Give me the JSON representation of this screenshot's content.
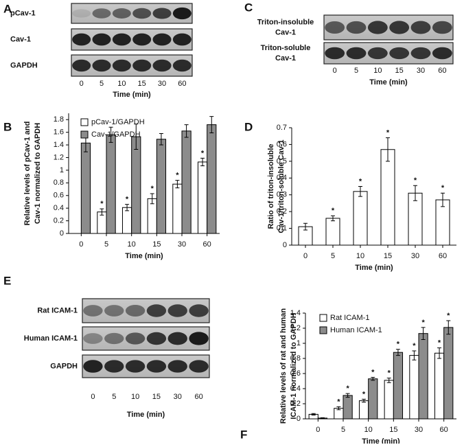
{
  "blots": [
    {
      "label": "A",
      "rows": [
        [
          "pCav-1"
        ],
        [
          "Cav-1"
        ],
        [
          "GAPDH"
        ]
      ],
      "lanes": [
        "0",
        "5",
        "10",
        "15",
        "30",
        "60"
      ],
      "xlabel": "Time (min)"
    },
    {
      "label": "C",
      "rows": [
        [
          "Triton-insoluble",
          "Cav-1"
        ],
        [
          "Triton-soluble",
          "Cav-1"
        ]
      ],
      "lanes": [
        "0",
        "5",
        "10",
        "15",
        "30",
        "60"
      ],
      "xlabel": "Time (min)"
    },
    {
      "label": "E",
      "rows": [
        [
          "Rat ICAM-1"
        ],
        [
          "Human ICAM-1"
        ],
        [
          "GAPDH"
        ]
      ],
      "lanes": [
        "0",
        "5",
        "10",
        "15",
        "30",
        "60"
      ],
      "xlabel": "Time (min)"
    }
  ],
  "chart_data": [
    {
      "type": "bar",
      "label": "B",
      "ylabel": [
        "Relative levels of pCav-1 and",
        "Cav-1 normalized to GAPDH"
      ],
      "xlabel": "Time (min)",
      "categories": [
        "0",
        "5",
        "10",
        "15",
        "30",
        "60"
      ],
      "series": [
        {
          "name": "pCav-1/GAPDH",
          "color": "#ffffff",
          "values": [
            null,
            0.34,
            0.41,
            0.55,
            0.78,
            1.13
          ],
          "errors": [
            null,
            0.05,
            0.05,
            0.08,
            0.06,
            0.06
          ],
          "annotations": [
            null,
            "*",
            "*",
            "*",
            "*",
            "*"
          ]
        },
        {
          "name": "Cav-1/GAPDH",
          "color": "#8c8c8c",
          "values": [
            1.43,
            1.56,
            1.53,
            1.49,
            1.62,
            1.72
          ],
          "errors": [
            0.14,
            0.12,
            0.2,
            0.09,
            0.1,
            0.13
          ]
        }
      ],
      "ylim": [
        0,
        1.9
      ],
      "yticks": [
        0,
        0.2,
        0.4,
        0.6,
        0.8,
        1,
        1.2,
        1.4,
        1.6,
        1.8
      ],
      "legend": "top-left"
    },
    {
      "type": "bar",
      "label": "D",
      "ylabel": [
        "Ratio of triton-insoluble",
        "Cav-1/triton-soluble Cav-1"
      ],
      "xlabel": "Time (min)",
      "categories": [
        "0",
        "5",
        "10",
        "15",
        "30",
        "60"
      ],
      "series": [
        {
          "color": "#ffffff",
          "values": [
            0.11,
            0.16,
            0.32,
            0.57,
            0.31,
            0.27
          ],
          "errors": [
            0.02,
            0.015,
            0.03,
            0.07,
            0.045,
            0.04
          ],
          "annotations": [
            null,
            "*",
            "*",
            "*",
            "*",
            "*"
          ]
        }
      ],
      "ylim": [
        0,
        0.7
      ],
      "yticks": [
        0,
        0.1,
        0.2,
        0.3,
        0.4,
        0.5,
        0.6,
        0.7
      ]
    },
    {
      "type": "bar",
      "label": "F",
      "ylabel": [
        "Relative levels of rat and human",
        "ICAM-1 normalized to GAPDH"
      ],
      "xlabel": "Time (min)",
      "categories": [
        "0",
        "5",
        "10",
        "15",
        "30",
        "60"
      ],
      "series": [
        {
          "name": "Rat ICAM-1",
          "color": "#ffffff",
          "values": [
            0.06,
            0.14,
            0.24,
            0.51,
            0.84,
            0.87
          ],
          "errors": [
            0.01,
            0.02,
            0.02,
            0.03,
            0.06,
            0.07
          ],
          "annotations": [
            null,
            "*",
            "*",
            "*",
            "*",
            "*"
          ]
        },
        {
          "name": "Human ICAM-1",
          "color": "#8c8c8c",
          "values": [
            0.01,
            0.31,
            0.53,
            0.88,
            1.13,
            1.21
          ],
          "errors": [
            0.005,
            0.025,
            0.02,
            0.04,
            0.08,
            0.09
          ],
          "annotations": [
            null,
            "*",
            "*",
            "*",
            "*",
            "*"
          ]
        }
      ],
      "ylim": [
        0,
        1.4
      ],
      "yticks": [
        0,
        0.2,
        0.4,
        0.6,
        0.8,
        1,
        1.2,
        1.4
      ],
      "legend": "top-left"
    }
  ]
}
